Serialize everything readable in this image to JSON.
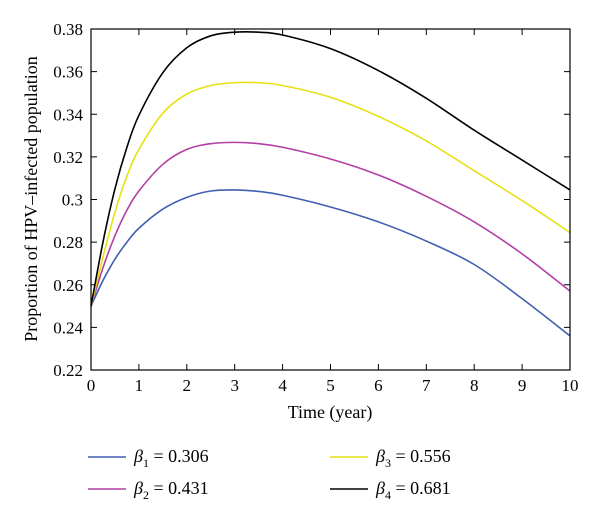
{
  "chart_data": {
    "type": "line",
    "title": "",
    "xlabel": "Time (year)",
    "ylabel": "Proportion of HPV–infected population",
    "xlim": [
      0,
      10
    ],
    "ylim": [
      0.22,
      0.38
    ],
    "x_ticks": [
      "0",
      "1",
      "2",
      "3",
      "4",
      "5",
      "6",
      "7",
      "8",
      "9",
      "10"
    ],
    "y_ticks": [
      "0.22",
      "0.24",
      "0.26",
      "0.28",
      "0.3",
      "0.32",
      "0.34",
      "0.36",
      "0.38"
    ],
    "grid": false,
    "legend_position": "below",
    "x": [
      0,
      0.25,
      0.5,
      0.75,
      1,
      1.5,
      2,
      2.5,
      3,
      3.5,
      4,
      5,
      6,
      7,
      8,
      9,
      10
    ],
    "series": [
      {
        "name": "β",
        "subscript": "1",
        "value_text": " = 0.306",
        "color": "#3f5fb0",
        "values": [
          0.25,
          0.262,
          0.272,
          0.28,
          0.2865,
          0.2955,
          0.301,
          0.304,
          0.3045,
          0.3038,
          0.302,
          0.2965,
          0.2895,
          0.2805,
          0.2695,
          0.2535,
          0.236
        ]
      },
      {
        "name": "β",
        "subscript": "2",
        "value_text": " = 0.431",
        "color": "#b23fa4",
        "values": [
          0.25,
          0.268,
          0.283,
          0.295,
          0.304,
          0.3165,
          0.3235,
          0.3262,
          0.3268,
          0.3262,
          0.3245,
          0.319,
          0.3115,
          0.3015,
          0.2895,
          0.2745,
          0.257
        ]
      },
      {
        "name": "β",
        "subscript": "3",
        "value_text": " = 0.556",
        "color": "#e7e012",
        "values": [
          0.25,
          0.273,
          0.294,
          0.311,
          0.3235,
          0.3405,
          0.3495,
          0.3535,
          0.3548,
          0.3548,
          0.3535,
          0.348,
          0.339,
          0.3275,
          0.3135,
          0.2995,
          0.2845
        ]
      },
      {
        "name": "β",
        "subscript": "4",
        "value_text": " = 0.681",
        "color": "#000000",
        "values": [
          0.25,
          0.28,
          0.305,
          0.3245,
          0.3395,
          0.3595,
          0.3712,
          0.3768,
          0.3785,
          0.3785,
          0.3772,
          0.3708,
          0.3605,
          0.3475,
          0.3325,
          0.3185,
          0.3045
        ]
      }
    ]
  }
}
